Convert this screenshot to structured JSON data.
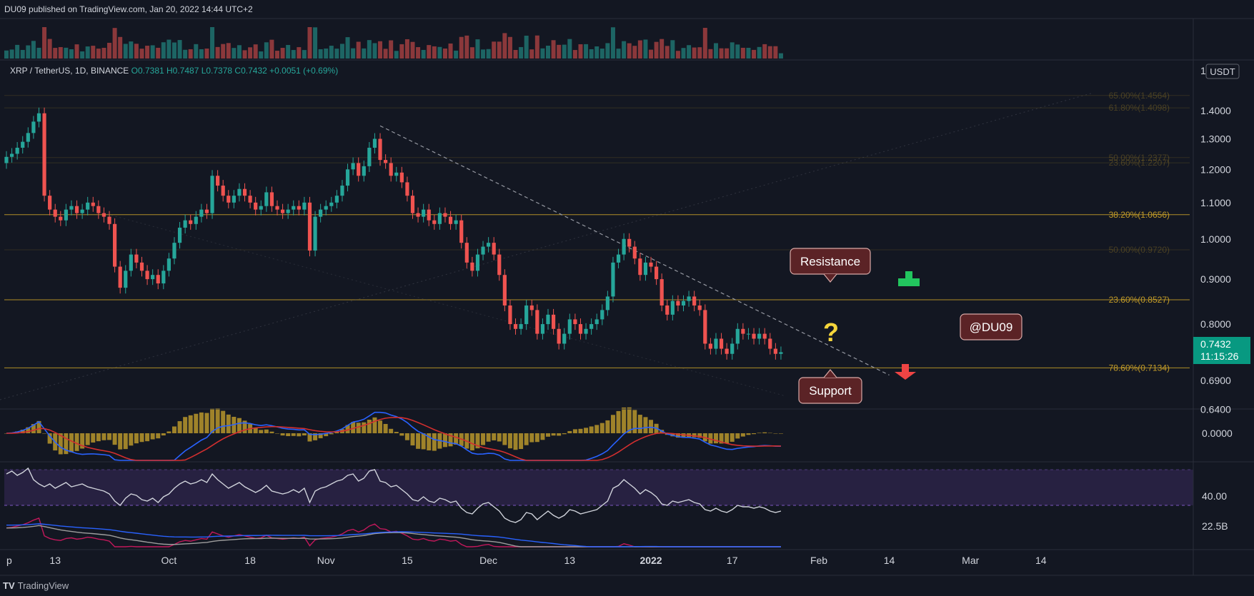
{
  "header": {
    "published": "DU09 published on TradingView.com, Jan 20, 2022 14:44 UTC+2"
  },
  "footer": {
    "logo_text": "TradingView"
  },
  "symbol": {
    "name": "XRP / TetherUS, 1D, BINANCE",
    "open": "O0.7381",
    "high": "H0.7487",
    "low": "L0.7378",
    "close": "C0.7432",
    "change": "+0.0051 (+0.69%)"
  },
  "price_axis": {
    "currency": "USDT",
    "top_marker": "1",
    "last_price": "0.7432",
    "countdown": "11:15:26"
  },
  "annotations": {
    "resistance": "Resistance",
    "support": "Support",
    "watermark": "@DU09",
    "question": "?"
  },
  "colors": {
    "background": "#131722",
    "up": "#26a69a",
    "down": "#ef5350",
    "fib": "#c29b28",
    "macd_line": "#2962ff",
    "signal_line": "#d32f2f",
    "rsi_line": "#d1d4dc",
    "rsi_band": "#2a2245",
    "last_price_bg": "#089981"
  },
  "chart_data": {
    "type": "candlestick",
    "title": "XRP / TetherUS, 1D, BINANCE",
    "x_axis": {
      "tick_labels": [
        "p",
        "13",
        "Oct",
        "18",
        "Nov",
        "15",
        "Dec",
        "13",
        "2022",
        "17",
        "Feb",
        "14",
        "Mar",
        "14"
      ],
      "tick_day_index": [
        0,
        9,
        30,
        45,
        59,
        74,
        89,
        104,
        119,
        134,
        150,
        163,
        178,
        191
      ]
    },
    "y_axis": {
      "scale": "log",
      "range": [
        0.62,
        1.5
      ],
      "tick_labels": [
        "1.4000",
        "1.3000",
        "1.2000",
        "1.1000",
        "1.0000",
        "0.9000",
        "0.8000",
        "0.6900",
        "0.6400"
      ],
      "tick_values": [
        1.4,
        1.3,
        1.2,
        1.1,
        1.0,
        0.9,
        0.8,
        0.69,
        0.64
      ]
    },
    "fibonacci": [
      {
        "label": "65.00%(1.4564)",
        "value": 1.4564,
        "faint": true
      },
      {
        "label": "61.80%(1.4098)",
        "value": 1.4098,
        "faint": true
      },
      {
        "label": "50.00%(1.2377)",
        "value": 1.2377,
        "faint": true
      },
      {
        "label": "23.60%(1.2207)",
        "value": 1.2207,
        "faint": true
      },
      {
        "label": "38.20%(1.0656)",
        "value": 1.0656,
        "faint": false
      },
      {
        "label": "50.00%(0.9720)",
        "value": 0.972,
        "faint": true
      },
      {
        "label": "23.60%(0.8527)",
        "value": 0.8527,
        "faint": false
      },
      {
        "label": "78.60%(0.7134)",
        "value": 0.7134,
        "faint": false
      }
    ],
    "resistance_trendline": {
      "start": {
        "day": 69,
        "price": 1.345
      },
      "end": {
        "day": 163,
        "price": 0.7
      }
    },
    "closes": [
      1.24,
      1.25,
      1.27,
      1.29,
      1.32,
      1.36,
      1.39,
      1.12,
      1.08,
      1.06,
      1.05,
      1.08,
      1.09,
      1.07,
      1.08,
      1.1,
      1.09,
      1.07,
      1.06,
      1.04,
      0.93,
      0.88,
      0.92,
      0.96,
      0.94,
      0.92,
      0.9,
      0.91,
      0.89,
      0.92,
      0.95,
      0.99,
      1.03,
      1.05,
      1.04,
      1.06,
      1.08,
      1.07,
      1.18,
      1.15,
      1.12,
      1.1,
      1.12,
      1.14,
      1.12,
      1.1,
      1.08,
      1.09,
      1.13,
      1.09,
      1.08,
      1.07,
      1.08,
      1.09,
      1.08,
      1.1,
      0.97,
      1.06,
      1.08,
      1.09,
      1.1,
      1.12,
      1.15,
      1.2,
      1.22,
      1.18,
      1.21,
      1.27,
      1.3,
      1.23,
      1.22,
      1.18,
      1.19,
      1.16,
      1.12,
      1.07,
      1.06,
      1.08,
      1.05,
      1.04,
      1.07,
      1.06,
      1.04,
      1.05,
      0.99,
      0.94,
      0.92,
      0.96,
      0.98,
      0.99,
      0.96,
      0.91,
      0.84,
      0.8,
      0.79,
      0.8,
      0.84,
      0.83,
      0.78,
      0.8,
      0.82,
      0.79,
      0.76,
      0.78,
      0.81,
      0.8,
      0.78,
      0.79,
      0.8,
      0.81,
      0.83,
      0.86,
      0.94,
      0.96,
      1.0,
      0.98,
      0.95,
      0.91,
      0.94,
      0.93,
      0.9,
      0.84,
      0.82,
      0.85,
      0.84,
      0.85,
      0.86,
      0.84,
      0.83,
      0.76,
      0.75,
      0.77,
      0.75,
      0.74,
      0.76,
      0.79,
      0.78,
      0.78,
      0.77,
      0.78,
      0.77,
      0.75,
      0.74,
      0.7432
    ],
    "rsi": {
      "level_label": "40.00",
      "values": [
        62,
        64,
        61,
        63,
        66,
        58,
        55,
        53,
        55,
        52,
        54,
        56,
        53,
        54,
        55,
        53,
        52,
        51,
        50,
        48,
        43,
        40,
        45,
        48,
        47,
        44,
        43,
        45,
        42,
        46,
        48,
        52,
        55,
        57,
        55,
        56,
        58,
        56,
        62,
        58,
        55,
        52,
        54,
        56,
        53,
        51,
        49,
        51,
        54,
        50,
        49,
        48,
        49,
        51,
        49,
        52,
        42,
        50,
        52,
        53,
        55,
        57,
        58,
        61,
        62,
        57,
        59,
        64,
        65,
        57,
        56,
        53,
        54,
        51,
        48,
        44,
        43,
        46,
        43,
        42,
        45,
        44,
        42,
        43,
        38,
        35,
        34,
        38,
        41,
        42,
        39,
        36,
        31,
        29,
        28,
        30,
        35,
        34,
        30,
        33,
        36,
        33,
        31,
        33,
        37,
        36,
        34,
        35,
        36,
        37,
        40,
        43,
        52,
        54,
        58,
        55,
        52,
        48,
        51,
        49,
        46,
        41,
        40,
        43,
        42,
        43,
        44,
        42,
        41,
        37,
        36,
        38,
        36,
        35,
        37,
        40,
        39,
        39,
        38,
        39,
        38,
        36,
        35,
        36
      ]
    },
    "second_indicator": {
      "axis_label": "22.5B"
    }
  }
}
